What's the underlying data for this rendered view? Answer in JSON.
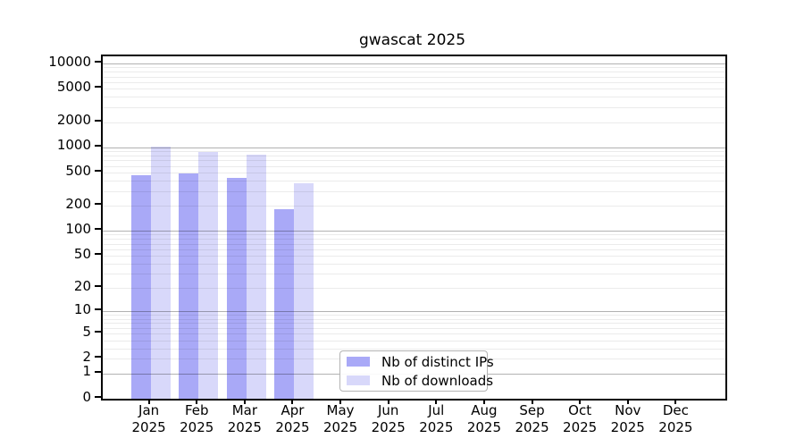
{
  "title": "gwascat 2025",
  "chart_data": {
    "type": "bar",
    "title": "gwascat 2025",
    "year_label": "2025",
    "months": [
      "Jan",
      "Feb",
      "Mar",
      "Apr",
      "May",
      "Jun",
      "Jul",
      "Aug",
      "Sep",
      "Oct",
      "Nov",
      "Dec"
    ],
    "series": [
      {
        "name": "Nb of distinct IPs",
        "color": "#a9a9f7",
        "values": [
          460,
          490,
          430,
          180,
          null,
          null,
          null,
          null,
          null,
          null,
          null,
          null
        ]
      },
      {
        "name": "Nb of downloads",
        "color": "#d8d8fa",
        "values": [
          1010,
          890,
          820,
          375,
          null,
          null,
          null,
          null,
          null,
          null,
          null,
          null
        ]
      }
    ],
    "y_scale": "log10(1+y)",
    "y_ticks": [
      0,
      1,
      2,
      5,
      10,
      20,
      50,
      100,
      200,
      500,
      1000,
      2000,
      5000,
      10000
    ],
    "y_major_gridlines": [
      1,
      10,
      100,
      1000,
      10000
    ],
    "ylim": [
      0,
      12200
    ],
    "grid": true,
    "legend_position": "lower-center-inside",
    "colors": {
      "axis": "#000000",
      "major_grid": "#b4b4b4",
      "minor_grid": "#e8e8e8",
      "background": "#ffffff"
    }
  }
}
